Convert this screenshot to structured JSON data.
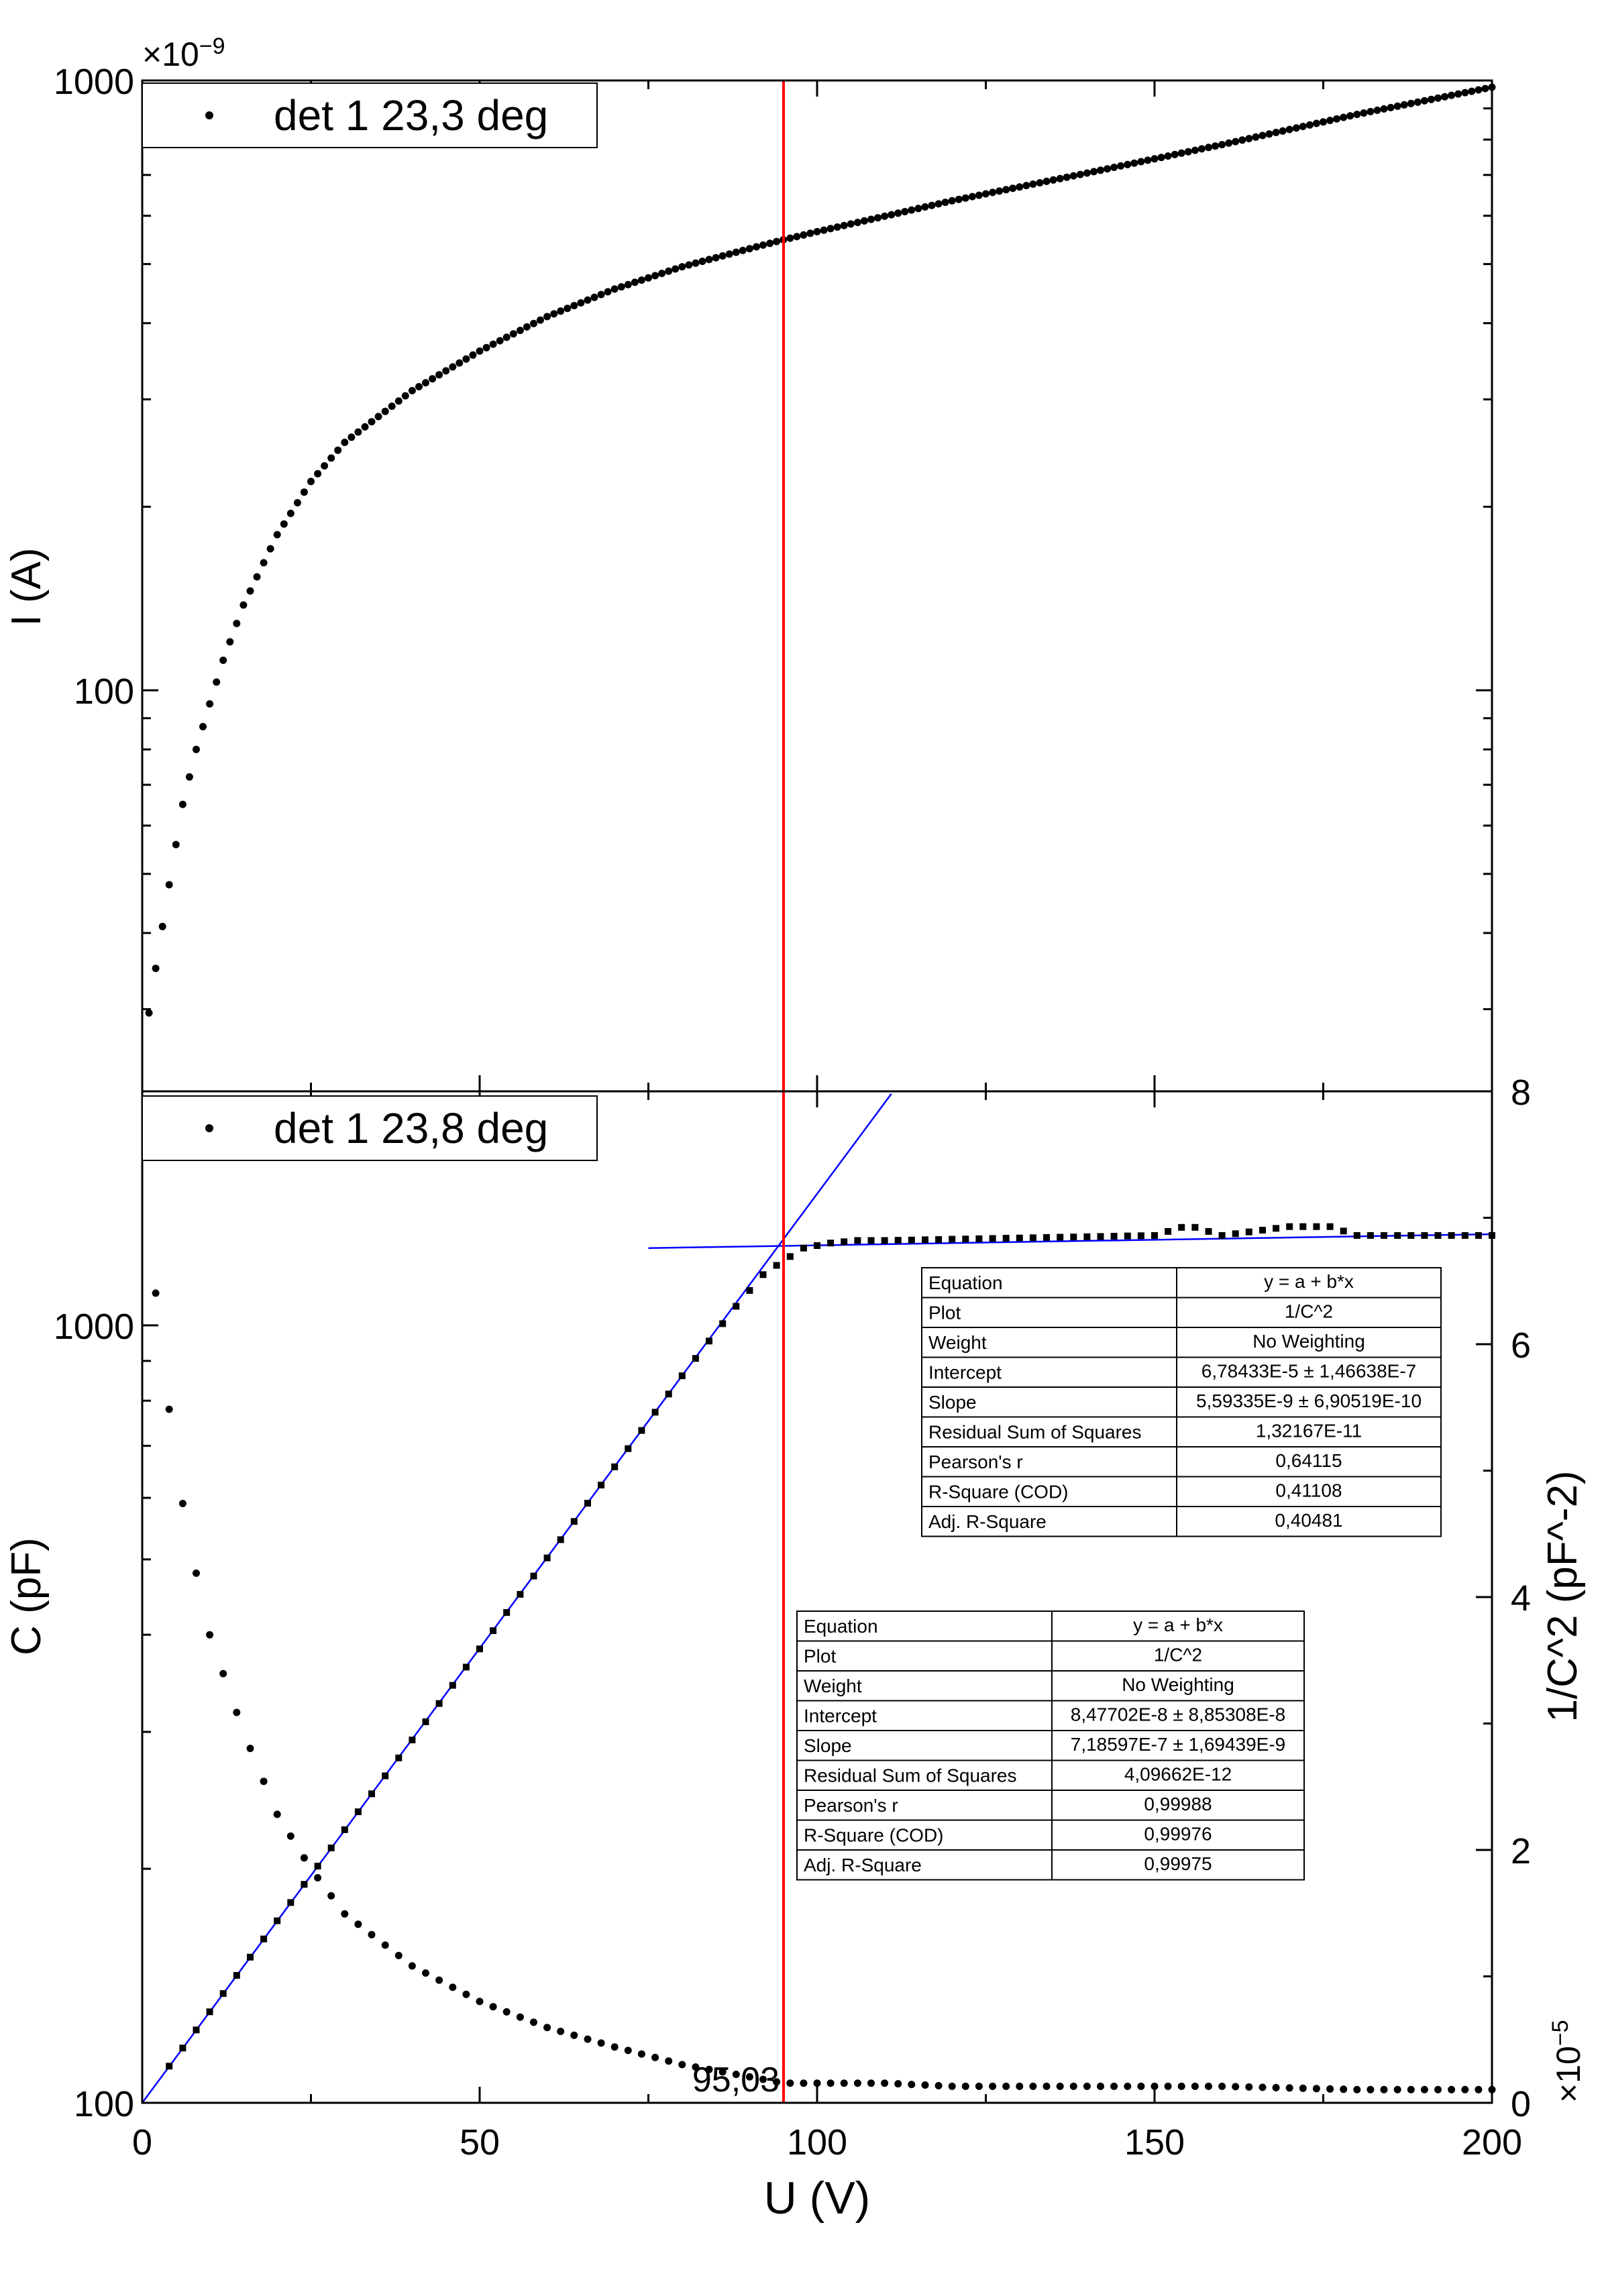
{
  "chart_data": [
    {
      "type": "scatter",
      "panel": "top",
      "ylabel": "I (A)",
      "yscale": "log",
      "y_multiplier": "×10",
      "y_multiplier_exp": "−9",
      "ylim": [
        22,
        1000
      ],
      "xlim": [
        0,
        200
      ],
      "y_ticks": [
        {
          "value": 100,
          "label": "100"
        },
        {
          "value": 1000,
          "label": "1000"
        }
      ],
      "legend": {
        "position": "top-left",
        "entries": [
          "det 1 23,3 deg"
        ]
      },
      "series": [
        {
          "name": "det 1 23,3 deg",
          "color": "#000000",
          "marker": "dot",
          "x": [
            0,
            2,
            4,
            6,
            8,
            10,
            12,
            15,
            20,
            25,
            30,
            40,
            50,
            60,
            70,
            80,
            90,
            95,
            100,
            120,
            140,
            160,
            180,
            200
          ],
          "y": [
            25,
            35,
            48,
            65,
            80,
            95,
            112,
            138,
            180,
            220,
            255,
            310,
            360,
            410,
            455,
            495,
            530,
            548,
            565,
            635,
            705,
            785,
            880,
            975
          ]
        }
      ]
    },
    {
      "type": "scatter",
      "panel": "bottom",
      "xlabel": "U (V)",
      "ylabel": "C (pF)",
      "yscale": "log",
      "ylim": [
        100,
        2000
      ],
      "y2label": "1/C^2 (pF^-2)",
      "y2_multiplier": "×10",
      "y2_multiplier_exp": "−5",
      "y2lim": [
        0,
        8
      ],
      "xlim": [
        0,
        200
      ],
      "x_ticks": [
        0,
        50,
        100,
        150,
        200
      ],
      "y_ticks": [
        {
          "value": 100,
          "label": "100"
        },
        {
          "value": 1000,
          "label": "1000"
        }
      ],
      "y2_ticks": [
        0,
        2,
        4,
        6,
        8
      ],
      "legend": {
        "position": "top-left",
        "entries": [
          "det 1 23,8 deg"
        ]
      },
      "series": [
        {
          "name": "det 1 23,8 deg",
          "axis": "left",
          "color": "#000000",
          "marker": "dot",
          "x": [
            2,
            4,
            6,
            8,
            10,
            15,
            20,
            25,
            30,
            40,
            50,
            60,
            70,
            80,
            90,
            95,
            100,
            110,
            120,
            140,
            160,
            180,
            200
          ],
          "y": [
            1100,
            780,
            590,
            480,
            400,
            300,
            235,
            200,
            175,
            150,
            135,
            125,
            118,
            112,
            108,
            106,
            106,
            106,
            105,
            105,
            105,
            104,
            104
          ]
        },
        {
          "axis": "right",
          "color": "#000000",
          "marker": "square",
          "x": [
            4,
            10,
            20,
            30,
            40,
            50,
            60,
            70,
            80,
            88,
            92,
            95,
            98,
            102,
            106,
            110,
            120,
            130,
            140,
            150,
            155,
            160,
            170,
            176,
            180,
            190,
            200
          ],
          "y": [
            0.29,
            0.72,
            1.44,
            2.16,
            2.87,
            3.59,
            4.31,
            5.03,
            5.75,
            6.3,
            6.55,
            6.66,
            6.76,
            6.8,
            6.82,
            6.82,
            6.83,
            6.84,
            6.85,
            6.86,
            6.94,
            6.86,
            6.93,
            6.93,
            6.86,
            6.86,
            6.86
          ]
        }
      ],
      "fit_lines": [
        {
          "color": "#0000ff",
          "x": [
            0,
            111
          ],
          "y": [
            0,
            7.98
          ]
        },
        {
          "color": "#0000ff",
          "x": [
            75,
            200
          ],
          "y": [
            6.76,
            6.87
          ]
        }
      ]
    }
  ],
  "vline": {
    "x": 95.03,
    "label": "95,03",
    "color": "#ff0000"
  },
  "fit_tables": [
    {
      "rows": [
        [
          "Equation",
          "y = a + b*x"
        ],
        [
          "Plot",
          "1/C^2"
        ],
        [
          "Weight",
          "No Weighting"
        ],
        [
          "Intercept",
          "6,78433E-5 ± 1,46638E-7"
        ],
        [
          "Slope",
          "5,59335E-9 ± 6,90519E-10"
        ],
        [
          "Residual Sum of Squares",
          "1,32167E-11"
        ],
        [
          "Pearson's r",
          "0,64115"
        ],
        [
          "R-Square (COD)",
          "0,41108"
        ],
        [
          "Adj. R-Square",
          "0,40481"
        ]
      ]
    },
    {
      "rows": [
        [
          "Equation",
          "y = a + b*x"
        ],
        [
          "Plot",
          "1/C^2"
        ],
        [
          "Weight",
          "No Weighting"
        ],
        [
          "Intercept",
          "8,47702E-8 ± 8,85308E-8"
        ],
        [
          "Slope",
          "7,18597E-7 ± 1,69439E-9"
        ],
        [
          "Residual Sum of Squares",
          "4,09662E-12"
        ],
        [
          "Pearson's r",
          "0,99988"
        ],
        [
          "R-Square (COD)",
          "0,99976"
        ],
        [
          "Adj. R-Square",
          "0,99975"
        ]
      ]
    }
  ]
}
